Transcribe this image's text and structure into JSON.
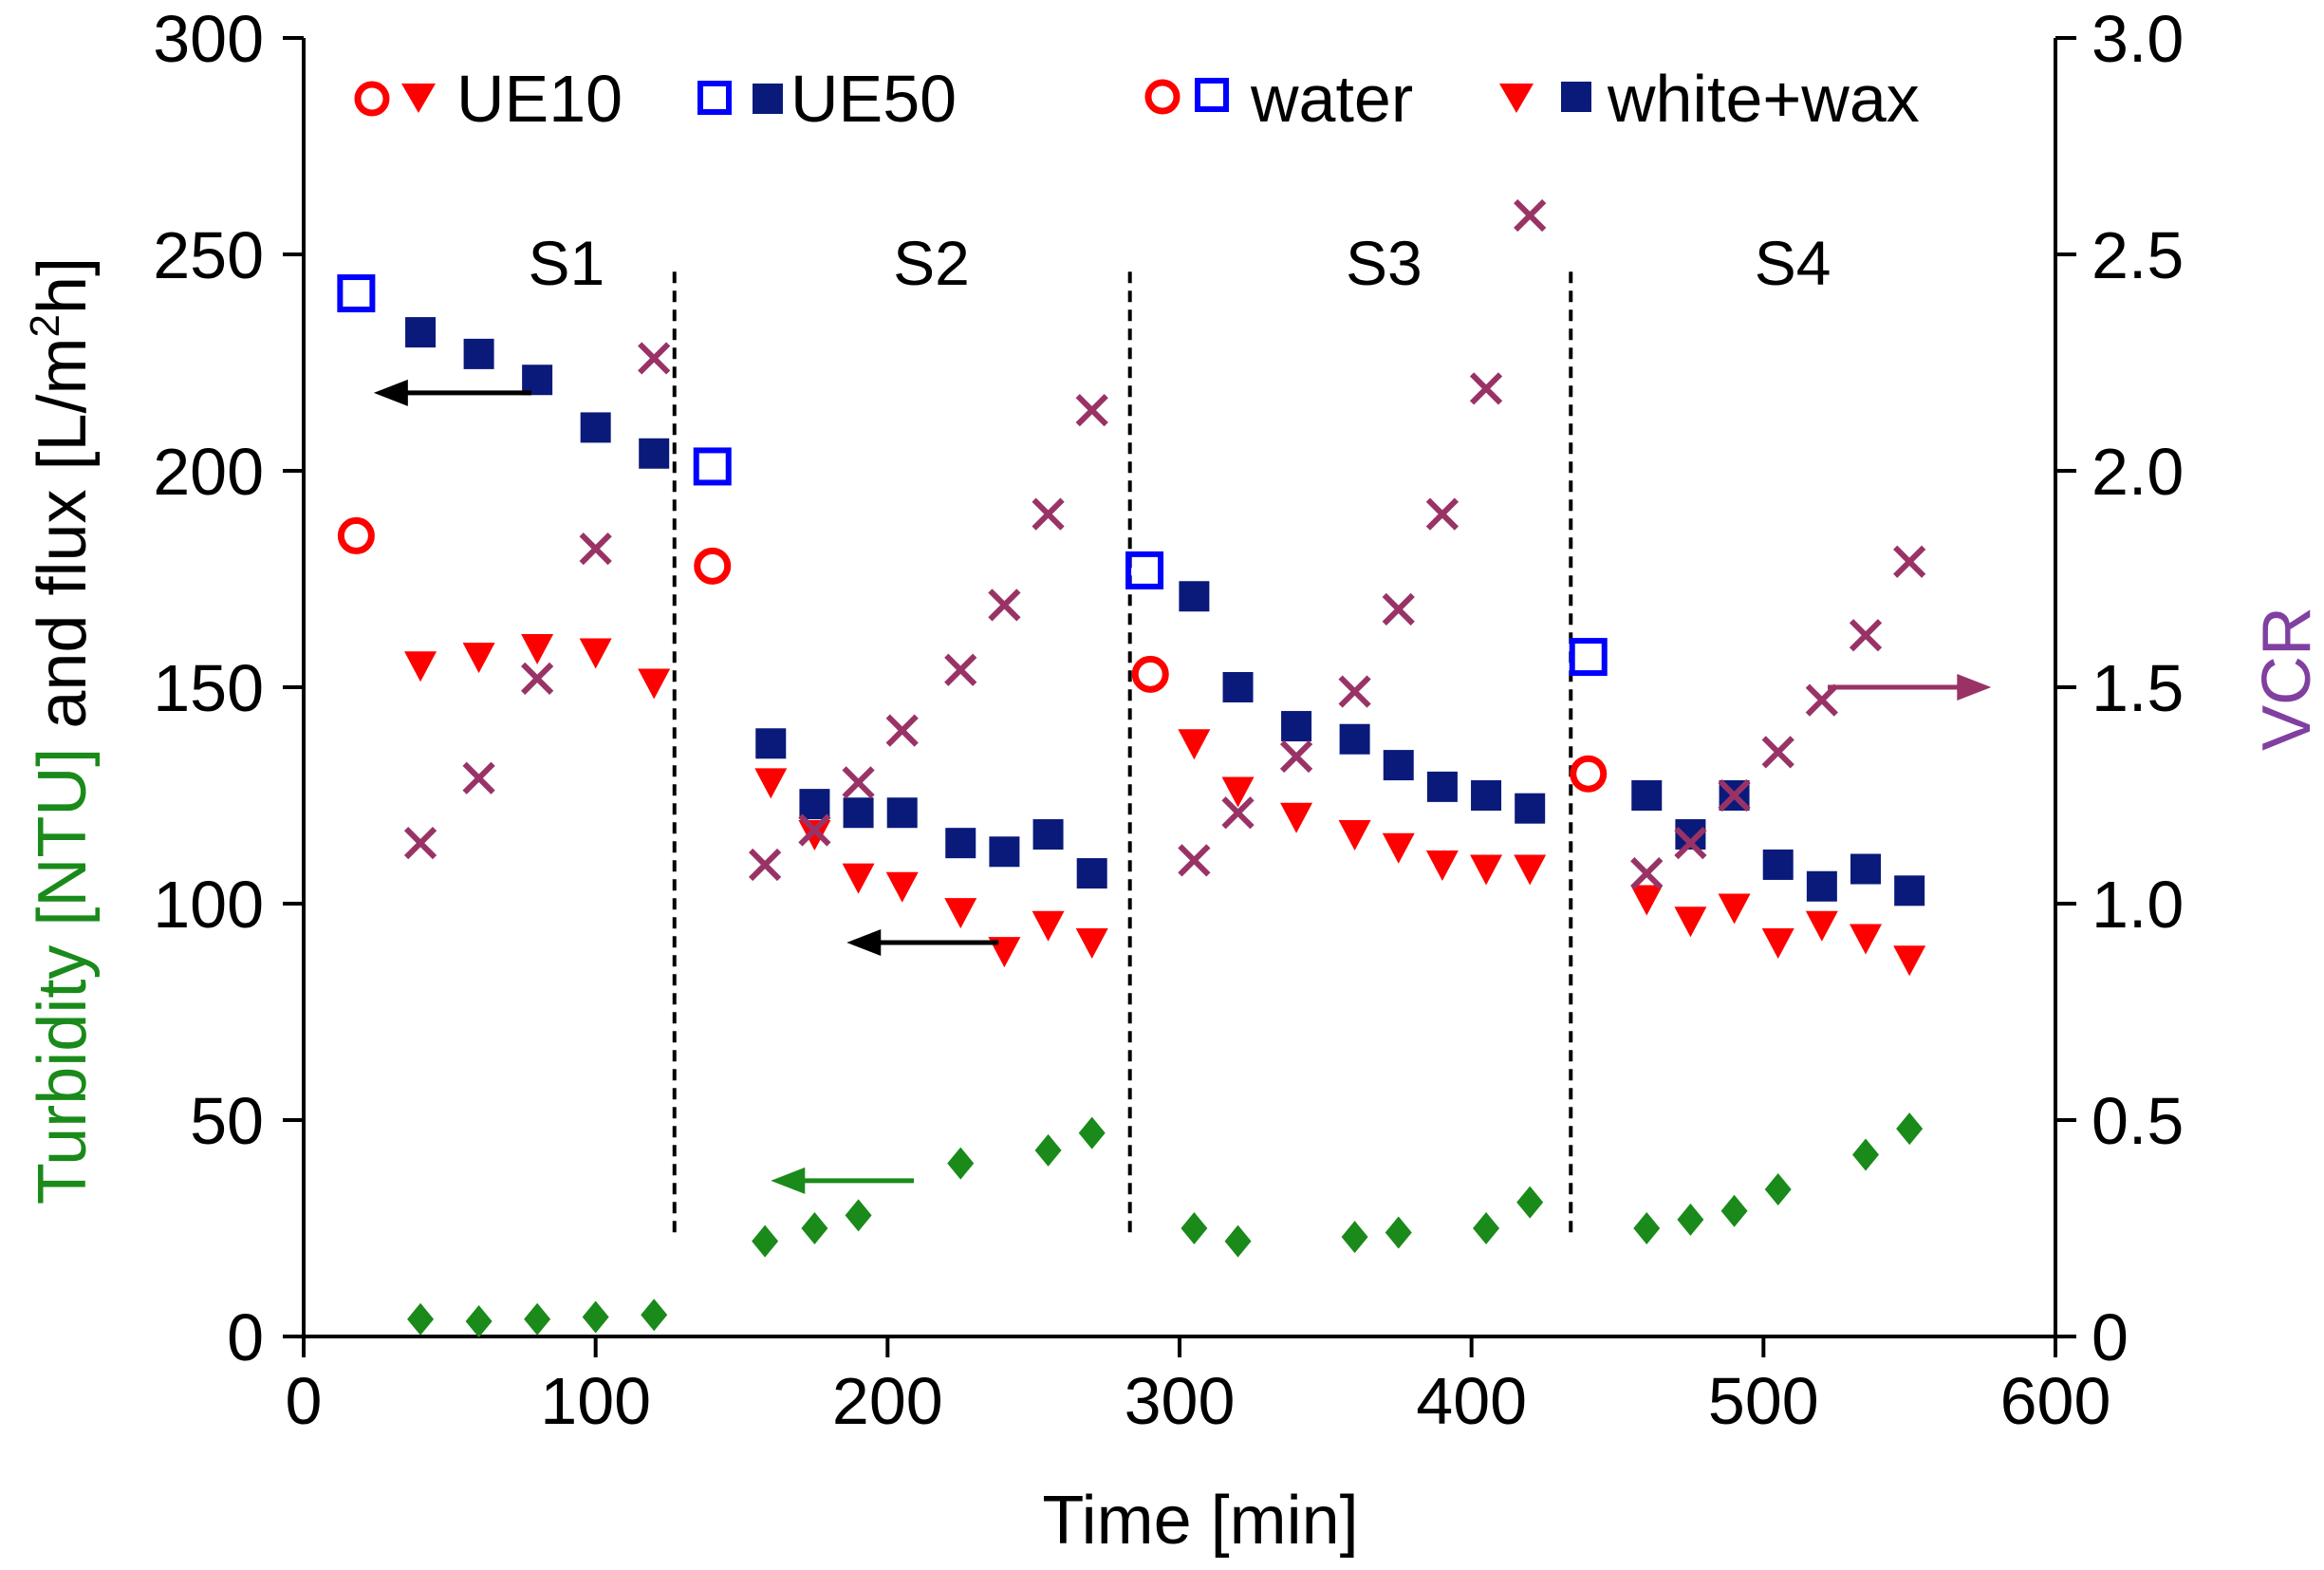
{
  "chart_data": {
    "type": "scatter",
    "xlabel": "Time [min]",
    "ylabel": {
      "turbidity_part": "Turbidity [NTU]",
      "flux_part_before_sup": " and flux [L/m",
      "flux_sup": "2",
      "flux_part_after_sup": "h]"
    },
    "y2label": "VCR",
    "xlim": [
      0,
      600
    ],
    "ylim": [
      0,
      300
    ],
    "y2lim": [
      0,
      3.0
    ],
    "xticks": [
      "0",
      "100",
      "200",
      "300",
      "400",
      "500",
      "600"
    ],
    "yticks": [
      "0",
      "50",
      "100",
      "150",
      "200",
      "250",
      "300"
    ],
    "y2ticks": [
      "0",
      "0.5",
      "1.0",
      "1.5",
      "2.0",
      "2.5",
      "3.0"
    ],
    "legend": {
      "ue10": "UE10",
      "ue50": "UE50",
      "water": "water",
      "white_wax": "white+wax"
    },
    "stages": [
      {
        "label": "S1",
        "x_center": 90
      },
      {
        "label": "S2",
        "x_center": 215
      },
      {
        "label": "S3",
        "x_center": 370
      },
      {
        "label": "S4",
        "x_center": 510
      }
    ],
    "stage_boundaries": [
      127,
      283,
      434
    ],
    "series": [
      {
        "name": "UE10 water flux",
        "marker": "open-circle",
        "color": "#ff0000",
        "axis": "left",
        "x": [
          18,
          140,
          290,
          440
        ],
        "y": [
          185,
          178,
          153,
          130
        ]
      },
      {
        "name": "UE10 white+wax flux",
        "marker": "triangle-down",
        "color": "#ff0000",
        "axis": "left",
        "x": [
          40,
          60,
          80,
          100,
          120,
          160,
          175,
          190,
          205,
          225,
          240,
          255,
          270,
          305,
          320,
          340,
          360,
          375,
          390,
          405,
          420,
          460,
          475,
          490,
          505,
          520,
          535,
          550
        ],
        "y": [
          155,
          157,
          159,
          158,
          151,
          128,
          116,
          106,
          104,
          98,
          89,
          95,
          91,
          137,
          126,
          120,
          116,
          113,
          109,
          108,
          108,
          101,
          96,
          99,
          91,
          95,
          92,
          87
        ]
      },
      {
        "name": "UE50 water flux",
        "marker": "open-square",
        "color": "#0000ff",
        "axis": "left",
        "x": [
          18,
          140,
          288,
          440
        ],
        "y": [
          241,
          201,
          177,
          157
        ]
      },
      {
        "name": "UE50 white+wax flux",
        "marker": "filled-square",
        "color": "#0a1a7a",
        "axis": "left",
        "x": [
          40,
          60,
          80,
          100,
          120,
          160,
          175,
          190,
          205,
          225,
          240,
          255,
          270,
          305,
          320,
          340,
          360,
          375,
          390,
          405,
          420,
          460,
          475,
          490,
          505,
          520,
          535,
          550
        ],
        "y": [
          232,
          227,
          221,
          210,
          204,
          137,
          123,
          121,
          121,
          114,
          112,
          116,
          107,
          171,
          150,
          141,
          138,
          132,
          127,
          125,
          122,
          125,
          116,
          125,
          109,
          104,
          108,
          103
        ]
      },
      {
        "name": "Turbidity",
        "marker": "diamond",
        "color": "#1a8a1a",
        "axis": "left",
        "x": [
          40,
          60,
          80,
          100,
          120,
          158,
          175,
          190,
          225,
          255,
          270,
          305,
          320,
          360,
          375,
          405,
          420,
          460,
          475,
          490,
          505,
          535,
          550
        ],
        "y": [
          4,
          3.5,
          4,
          4.5,
          5,
          22,
          25,
          28,
          40,
          43,
          47,
          25,
          22,
          23,
          24,
          25,
          31,
          25,
          27,
          29,
          34,
          42,
          48
        ]
      },
      {
        "name": "VCR",
        "marker": "cross",
        "color": "#993366",
        "axis": "right",
        "x": [
          40,
          60,
          80,
          100,
          120,
          158,
          175,
          190,
          205,
          225,
          240,
          255,
          270,
          305,
          320,
          340,
          360,
          375,
          390,
          405,
          420,
          460,
          475,
          490,
          505,
          520,
          535,
          550
        ],
        "y": [
          1.14,
          1.29,
          1.52,
          1.82,
          2.26,
          1.09,
          1.17,
          1.28,
          1.4,
          1.54,
          1.69,
          1.9,
          2.14,
          1.1,
          1.21,
          1.34,
          1.49,
          1.68,
          1.9,
          2.19,
          2.59,
          1.07,
          1.14,
          1.25,
          1.35,
          1.47,
          1.62,
          1.79
        ]
      }
    ],
    "arrows": [
      {
        "from_x": 78,
        "to_x": 24,
        "y": 218,
        "color": "#000000",
        "points_to": "left-axis"
      },
      {
        "from_x": 238,
        "to_x": 186,
        "y": 91,
        "color": "#000000",
        "points_to": "left-axis"
      },
      {
        "from_x": 209,
        "to_x": 160,
        "y": 36,
        "color": "#1a8a1a",
        "points_to": "left-axis"
      },
      {
        "from_x": 522,
        "to_x": 578,
        "y": 150,
        "color": "#993366",
        "points_to": "right-axis"
      }
    ]
  }
}
